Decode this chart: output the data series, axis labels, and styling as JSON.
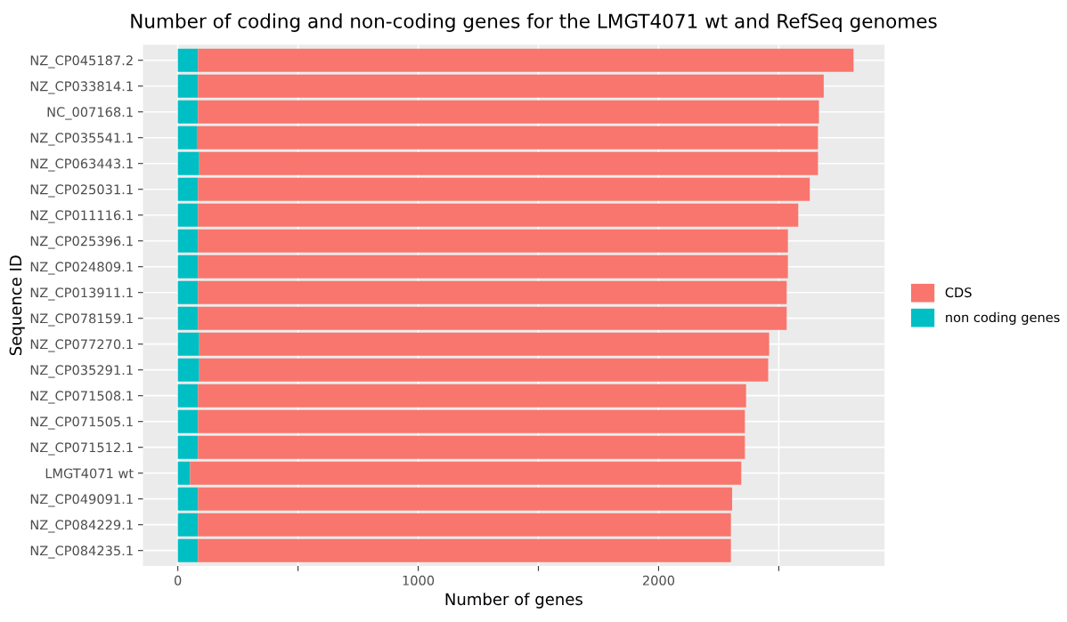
{
  "chart_data": {
    "type": "bar",
    "orientation": "horizontal",
    "stacked": true,
    "title": "Number of coding and non-coding genes for the LMGT4071 wt and RefSeq genomes",
    "xlabel": "Number of genes",
    "ylabel": "Sequence ID",
    "categories": [
      "NZ_CP045187.2",
      "NZ_CP033814.1",
      "NC_007168.1",
      "NZ_CP035541.1",
      "NZ_CP063443.1",
      "NZ_CP025031.1",
      "NZ_CP011116.1",
      "NZ_CP025396.1",
      "NZ_CP024809.1",
      "NZ_CP013911.1",
      "NZ_CP078159.1",
      "NZ_CP077270.1",
      "NZ_CP035291.1",
      "NZ_CP071508.1",
      "NZ_CP071505.1",
      "NZ_CP071512.1",
      "LMGT4071 wt",
      "NZ_CP049091.1",
      "NZ_CP084229.1",
      "NZ_CP084235.1"
    ],
    "series": [
      {
        "name": "non coding genes",
        "color": "#00bfc4",
        "values": [
          84,
          84,
          84,
          79,
          89,
          84,
          84,
          84,
          84,
          84,
          84,
          89,
          89,
          84,
          84,
          84,
          51,
          84,
          84,
          84
        ]
      },
      {
        "name": "CDS",
        "color": "#f8766d",
        "values": [
          2727,
          2603,
          2583,
          2584,
          2574,
          2545,
          2497,
          2454,
          2454,
          2449,
          2449,
          2371,
          2367,
          2280,
          2275,
          2275,
          2293,
          2222,
          2217,
          2217
        ]
      }
    ],
    "xlim": [
      -145,
      2940
    ],
    "xticks": [
      0,
      {
        "value": 500,
        "label": null
      },
      1000,
      {
        "value": 1500,
        "label": null
      },
      2000,
      {
        "value": 2500,
        "label": null
      }
    ],
    "grid": true,
    "legend": "right"
  }
}
